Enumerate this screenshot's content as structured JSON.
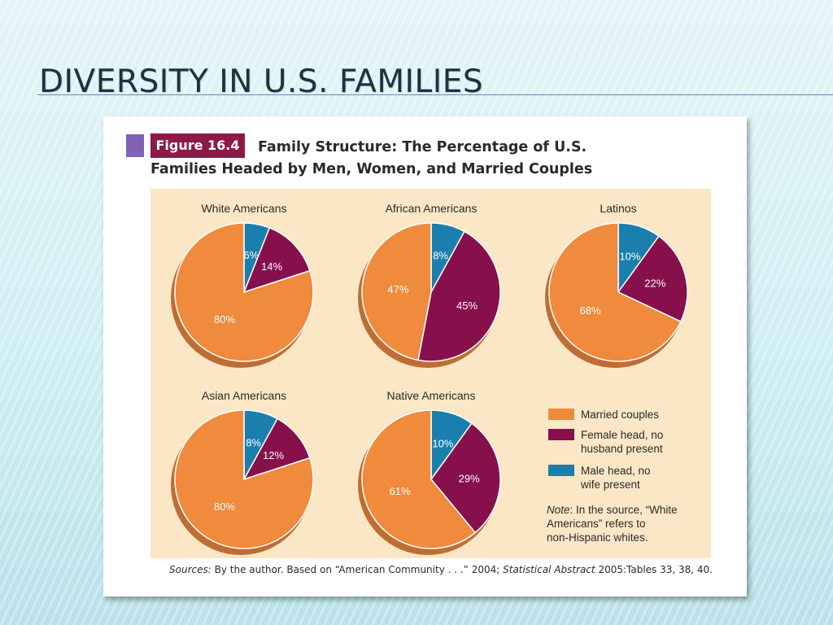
{
  "slide": {
    "title": "DIVERSITY IN U.S. FAMILIES"
  },
  "figure": {
    "label": "Figure 16.4",
    "title_line1": "Family Structure: The Percentage of U.S.",
    "title_line2": "Families Headed by Men, Women, and Married Couples",
    "sources_label": "Sources:",
    "sources_text1": "By the author. Based on “American Community . . .” 2004;",
    "sources_italic": "Statistical Abstract",
    "sources_text2": "2005:Tables 33, 38, 40.",
    "note_label": "Note",
    "note_lines": [
      ": In the source, “White",
      "Americans” refers to",
      "non-Hispanic whites."
    ]
  },
  "colors": {
    "married_couples": "#f08a3c",
    "female_head": "#870f4c",
    "male_head": "#1b7fae",
    "panel_background": "#fbe7c6"
  },
  "chart_data": {
    "type": "pie",
    "legend": [
      {
        "key": "married",
        "lines": [
          "Married couples"
        ]
      },
      {
        "key": "female",
        "lines": [
          "Female head, no",
          "husband present"
        ]
      },
      {
        "key": "male",
        "lines": [
          "Male head, no",
          "wife present"
        ]
      }
    ],
    "charts": [
      {
        "title": "White Americans",
        "married": 80,
        "female": 14,
        "male": 6
      },
      {
        "title": "African Americans",
        "married": 47,
        "female": 45,
        "male": 8
      },
      {
        "title": "Latinos",
        "married": 68,
        "female": 22,
        "male": 10
      },
      {
        "title": "Asian Americans",
        "married": 80,
        "female": 12,
        "male": 8
      },
      {
        "title": "Native Americans",
        "married": 61,
        "female": 29,
        "male": 10
      }
    ]
  }
}
